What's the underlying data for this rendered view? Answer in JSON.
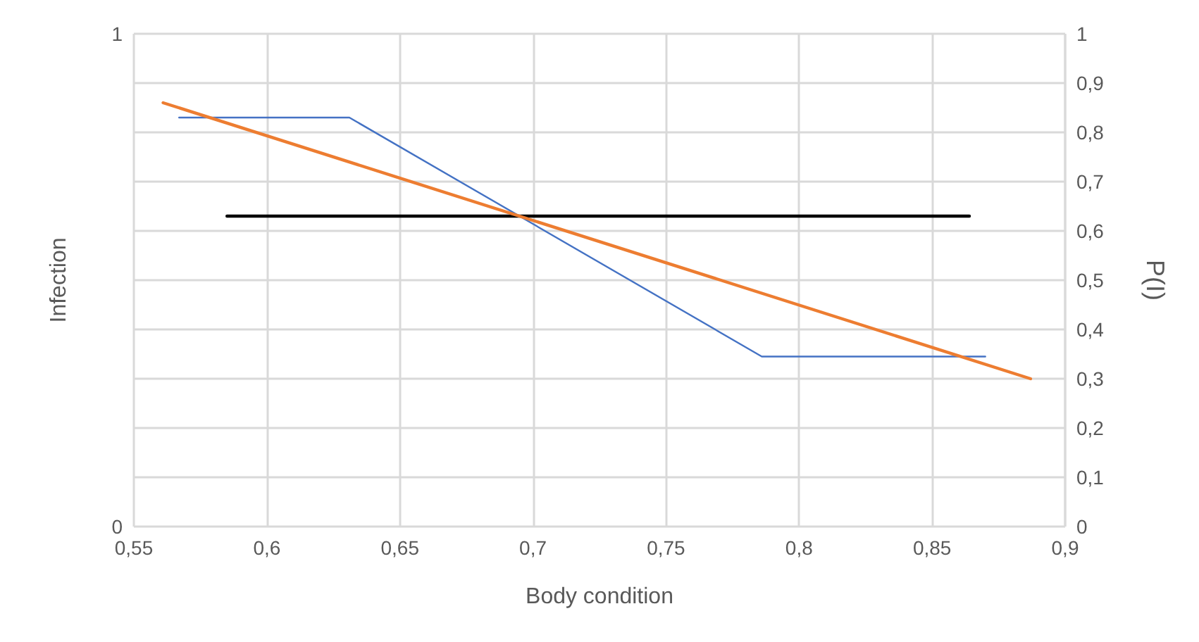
{
  "chart_data": {
    "type": "line",
    "xlabel": "Body condition",
    "ylabel": "Infection",
    "y2label": "P(I)",
    "xlim": [
      0.55,
      0.9
    ],
    "xticks": [
      {
        "value": 0.55,
        "label": "0,55"
      },
      {
        "value": 0.6,
        "label": "0,6"
      },
      {
        "value": 0.65,
        "label": "0,65"
      },
      {
        "value": 0.7,
        "label": "0,7"
      },
      {
        "value": 0.75,
        "label": "0,75"
      },
      {
        "value": 0.8,
        "label": "0,8"
      },
      {
        "value": 0.85,
        "label": "0,85"
      },
      {
        "value": 0.9,
        "label": "0,9"
      }
    ],
    "ylim": [
      0,
      1
    ],
    "yticks": [
      0,
      1
    ],
    "y2lim": [
      0,
      1
    ],
    "y2ticks": [
      0,
      {
        "value": 0.1,
        "label": "0,1"
      },
      {
        "value": 0.2,
        "label": "0,2"
      },
      {
        "value": 0.3,
        "label": "0,3"
      },
      {
        "value": 0.4,
        "label": "0,4"
      },
      {
        "value": 0.5,
        "label": "0,5"
      },
      {
        "value": 0.6,
        "label": "0,6"
      },
      {
        "value": 0.7,
        "label": "0,7"
      },
      {
        "value": 0.8,
        "label": "0,8"
      },
      {
        "value": 0.9,
        "label": "0,9"
      },
      1
    ],
    "series": [
      {
        "color": "#4472c4",
        "x": [
          0.567,
          0.631,
          0.786,
          0.87
        ],
        "values": [
          0.83,
          0.83,
          0.345,
          0.345
        ]
      },
      {
        "color": "#000000",
        "x": [
          0.585,
          0.864
        ],
        "values": [
          0.63,
          0.63
        ]
      },
      {
        "color": "#ed7d31",
        "x": [
          0.561,
          0.887
        ],
        "values": [
          0.86,
          0.3
        ]
      }
    ],
    "grid": true,
    "marker": "none",
    "line_style": "solid"
  }
}
